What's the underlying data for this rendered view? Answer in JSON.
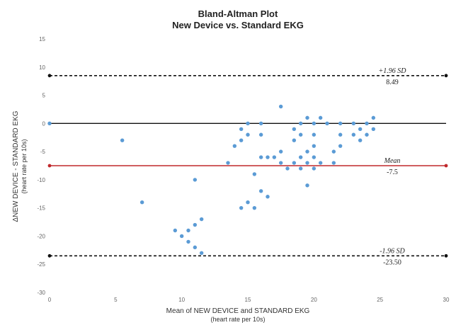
{
  "chart_data": {
    "type": "scatter",
    "title": "Bland-Altman Plot",
    "subtitle": "New Device vs. Standard EKG",
    "xlabel": "Mean of NEW DEVICE and STANDARD  EKG",
    "xlabel_sub": "(heart rate per 10s)",
    "ylabel": "ΔNEW DEVICE - STANDARD EKG",
    "ylabel_sub": "(heart rate per 10s)",
    "xlim": [
      0,
      30
    ],
    "ylim": [
      -30,
      15
    ],
    "xticks": [
      0,
      5,
      10,
      15,
      20,
      25,
      30
    ],
    "yticks": [
      15,
      10,
      5,
      0,
      -5,
      -10,
      -15,
      -20,
      -25,
      -30
    ],
    "grid": false,
    "zero_line": 0,
    "reference_lines": [
      {
        "label": "+1.96 SD",
        "value_label": "8.49",
        "y": 8.49,
        "style": "dashed",
        "color": "#111111"
      },
      {
        "label": "Mean",
        "value_label": "-7.5",
        "y": -7.5,
        "style": "solid",
        "color": "#c0282c"
      },
      {
        "label": "-1.96 SD",
        "value_label": "-23.50",
        "y": -23.5,
        "style": "dashed",
        "color": "#111111"
      }
    ],
    "point_color": "#5b9bd5",
    "points": [
      {
        "x": 0,
        "y": 0
      },
      {
        "x": 5.5,
        "y": -3
      },
      {
        "x": 7,
        "y": -14
      },
      {
        "x": 9.5,
        "y": -19
      },
      {
        "x": 10,
        "y": -20
      },
      {
        "x": 10.5,
        "y": -19
      },
      {
        "x": 10.5,
        "y": -21
      },
      {
        "x": 11,
        "y": -22
      },
      {
        "x": 11,
        "y": -18
      },
      {
        "x": 11,
        "y": -10
      },
      {
        "x": 11.5,
        "y": -17
      },
      {
        "x": 11.5,
        "y": -23
      },
      {
        "x": 13.5,
        "y": -7
      },
      {
        "x": 14,
        "y": -4
      },
      {
        "x": 14.5,
        "y": -3
      },
      {
        "x": 14.5,
        "y": -1
      },
      {
        "x": 14.5,
        "y": -15
      },
      {
        "x": 15,
        "y": -14
      },
      {
        "x": 15,
        "y": -2
      },
      {
        "x": 15,
        "y": 0
      },
      {
        "x": 15.5,
        "y": -9
      },
      {
        "x": 15.5,
        "y": -15
      },
      {
        "x": 16,
        "y": -6
      },
      {
        "x": 16,
        "y": -12
      },
      {
        "x": 16,
        "y": -2
      },
      {
        "x": 16,
        "y": 0
      },
      {
        "x": 16.5,
        "y": -13
      },
      {
        "x": 16.5,
        "y": -6
      },
      {
        "x": 17,
        "y": -6
      },
      {
        "x": 17.5,
        "y": 3
      },
      {
        "x": 17.5,
        "y": -5
      },
      {
        "x": 17.5,
        "y": -7
      },
      {
        "x": 18,
        "y": -8
      },
      {
        "x": 18.5,
        "y": -1
      },
      {
        "x": 18.5,
        "y": -3
      },
      {
        "x": 18.5,
        "y": -7
      },
      {
        "x": 19,
        "y": 0
      },
      {
        "x": 19,
        "y": -2
      },
      {
        "x": 19,
        "y": -6
      },
      {
        "x": 19,
        "y": -8
      },
      {
        "x": 19.5,
        "y": 1
      },
      {
        "x": 19.5,
        "y": -5
      },
      {
        "x": 19.5,
        "y": -7
      },
      {
        "x": 19.5,
        "y": -11
      },
      {
        "x": 20,
        "y": 0
      },
      {
        "x": 20,
        "y": -2
      },
      {
        "x": 20,
        "y": -4
      },
      {
        "x": 20,
        "y": -6
      },
      {
        "x": 20,
        "y": -8
      },
      {
        "x": 20.5,
        "y": 1
      },
      {
        "x": 20.5,
        "y": -7
      },
      {
        "x": 21,
        "y": 0
      },
      {
        "x": 21.5,
        "y": -5
      },
      {
        "x": 21.5,
        "y": -7
      },
      {
        "x": 22,
        "y": 0
      },
      {
        "x": 22,
        "y": -2
      },
      {
        "x": 22,
        "y": -4
      },
      {
        "x": 23,
        "y": 0
      },
      {
        "x": 23,
        "y": -2
      },
      {
        "x": 23.5,
        "y": -1
      },
      {
        "x": 23.5,
        "y": -3
      },
      {
        "x": 24,
        "y": 0
      },
      {
        "x": 24,
        "y": -2
      },
      {
        "x": 24.5,
        "y": 1
      },
      {
        "x": 24.5,
        "y": -1
      }
    ]
  }
}
